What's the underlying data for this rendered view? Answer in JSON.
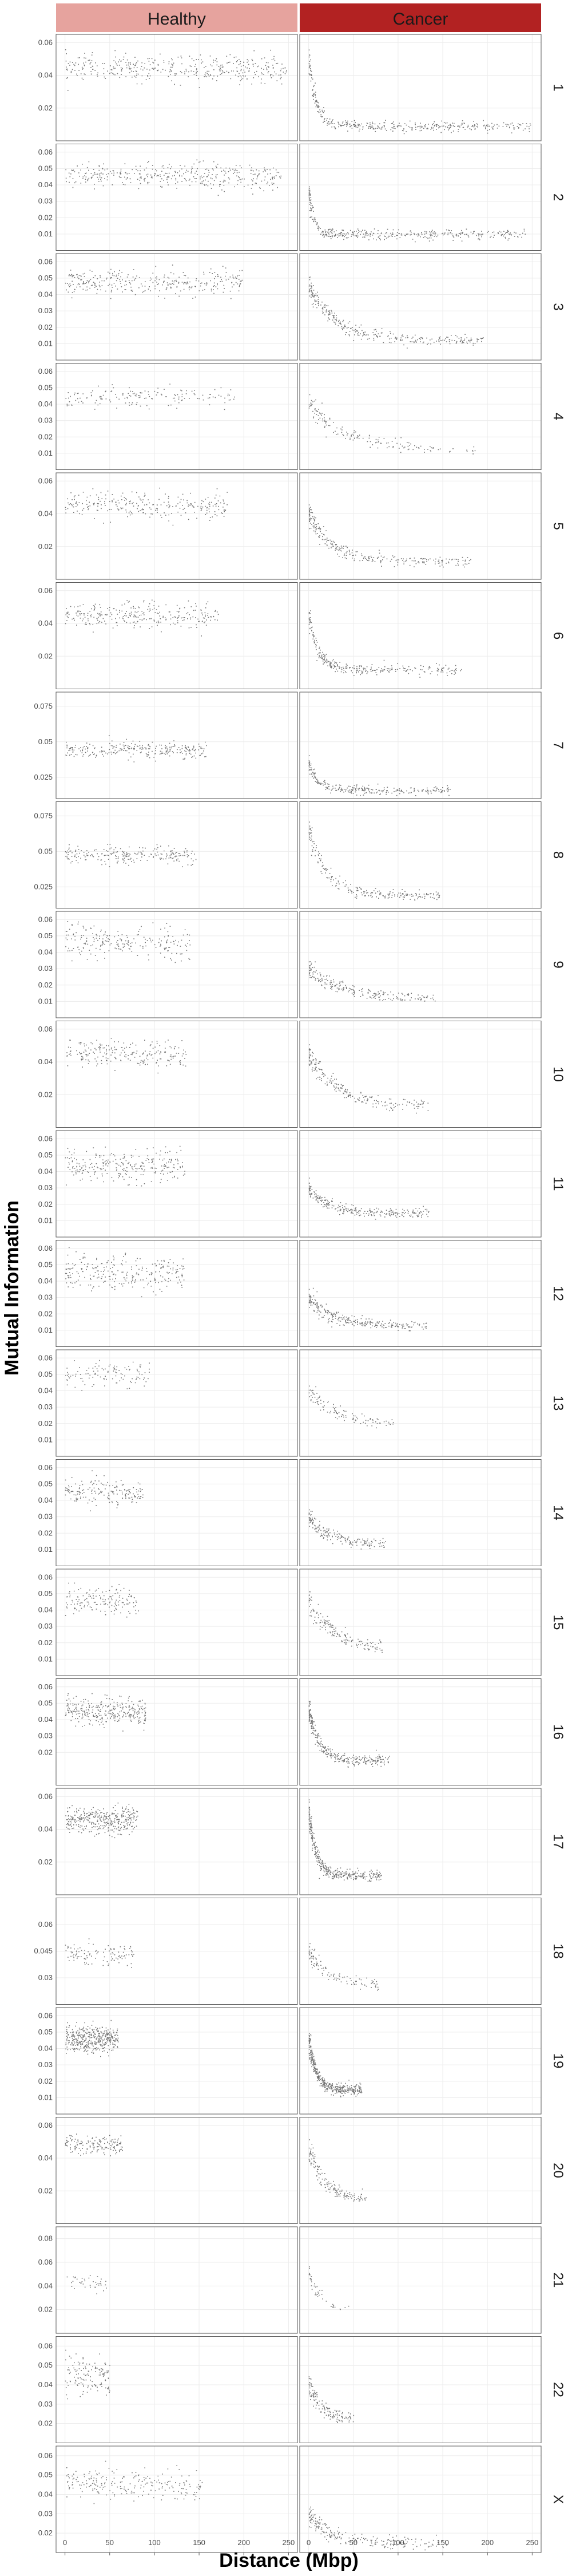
{
  "chart_data": {
    "type": "scatter",
    "xlabel": "Distance (Mbp)",
    "ylabel": "Mutual Information",
    "x_ticks": [
      0,
      50,
      100,
      150,
      200,
      250
    ],
    "xlim": [
      -10,
      260
    ],
    "grid": true,
    "columns": [
      {
        "name": "Healthy",
        "color": "#e6a39e"
      },
      {
        "name": "Cancer",
        "color": "#b22222"
      }
    ],
    "point_color": "#5a5a5a",
    "rows": [
      {
        "label": "1",
        "ylim": [
          0.0,
          0.065
        ],
        "y_ticks": [
          0.02,
          0.04,
          0.06
        ],
        "x_max": 248,
        "density": 900,
        "healthy": {
          "mean": 0.045,
          "spread": 0.004,
          "end": 0.044
        },
        "cancer": {
          "start": 0.05,
          "end": 0.009,
          "decay": 8
        }
      },
      {
        "label": "2",
        "ylim": [
          0.0,
          0.065
        ],
        "y_ticks": [
          0.01,
          0.02,
          0.03,
          0.04,
          0.05,
          0.06
        ],
        "x_max": 242,
        "density": 850,
        "healthy": {
          "mean": 0.046,
          "spread": 0.004,
          "end": 0.045
        },
        "cancer": {
          "start": 0.035,
          "end": 0.01,
          "decay": 6
        }
      },
      {
        "label": "3",
        "ylim": [
          0.0,
          0.065
        ],
        "y_ticks": [
          0.01,
          0.02,
          0.03,
          0.04,
          0.05,
          0.06
        ],
        "x_max": 198,
        "density": 700,
        "healthy": {
          "mean": 0.048,
          "spread": 0.004,
          "end": 0.047
        },
        "cancer": {
          "start": 0.045,
          "end": 0.012,
          "decay": 30
        }
      },
      {
        "label": "4",
        "ylim": [
          0.0,
          0.065
        ],
        "y_ticks": [
          0.01,
          0.02,
          0.03,
          0.04,
          0.05,
          0.06
        ],
        "x_max": 190,
        "density": 350,
        "healthy": {
          "mean": 0.045,
          "spread": 0.003,
          "end": 0.045
        },
        "cancer": {
          "start": 0.04,
          "end": 0.012,
          "decay": 45
        }
      },
      {
        "label": "5",
        "ylim": [
          0.0,
          0.065
        ],
        "y_ticks": [
          0.02,
          0.04,
          0.06
        ],
        "x_max": 181,
        "density": 600,
        "healthy": {
          "mean": 0.046,
          "spread": 0.004,
          "end": 0.045
        },
        "cancer": {
          "start": 0.04,
          "end": 0.011,
          "decay": 25
        }
      },
      {
        "label": "6",
        "ylim": [
          0.0,
          0.065
        ],
        "y_ticks": [
          0.02,
          0.04,
          0.06
        ],
        "x_max": 171,
        "density": 650,
        "healthy": {
          "mean": 0.045,
          "spread": 0.004,
          "end": 0.045
        },
        "cancer": {
          "start": 0.045,
          "end": 0.012,
          "decay": 10
        }
      },
      {
        "label": "7",
        "ylim": [
          0.01,
          0.085
        ],
        "y_ticks": [
          0.025,
          0.05,
          0.075
        ],
        "x_max": 159,
        "density": 600,
        "healthy": {
          "mean": 0.045,
          "spread": 0.003,
          "end": 0.044
        },
        "cancer": {
          "start": 0.035,
          "end": 0.016,
          "decay": 10
        }
      },
      {
        "label": "8",
        "ylim": [
          0.01,
          0.085
        ],
        "y_ticks": [
          0.025,
          0.05,
          0.075
        ],
        "x_max": 146,
        "density": 500,
        "healthy": {
          "mean": 0.048,
          "spread": 0.003,
          "end": 0.047
        },
        "cancer": {
          "start": 0.065,
          "end": 0.019,
          "decay": 20
        }
      },
      {
        "label": "9",
        "ylim": [
          0.0,
          0.065
        ],
        "y_ticks": [
          0.01,
          0.02,
          0.03,
          0.04,
          0.05,
          0.06
        ],
        "x_max": 141,
        "density": 500,
        "healthy": {
          "mean": 0.048,
          "spread": 0.005,
          "end": 0.045
        },
        "cancer": {
          "start": 0.03,
          "end": 0.012,
          "decay": 35
        }
      },
      {
        "label": "10",
        "ylim": [
          0.0,
          0.065
        ],
        "y_ticks": [
          0.02,
          0.04,
          0.06
        ],
        "x_max": 135,
        "density": 500,
        "healthy": {
          "mean": 0.046,
          "spread": 0.004,
          "end": 0.045
        },
        "cancer": {
          "start": 0.045,
          "end": 0.013,
          "decay": 30
        }
      },
      {
        "label": "11",
        "ylim": [
          0.0,
          0.065
        ],
        "y_ticks": [
          0.01,
          0.02,
          0.03,
          0.04,
          0.05,
          0.06
        ],
        "x_max": 135,
        "density": 600,
        "healthy": {
          "mean": 0.045,
          "spread": 0.005,
          "end": 0.043
        },
        "cancer": {
          "start": 0.03,
          "end": 0.015,
          "decay": 20
        }
      },
      {
        "label": "12",
        "ylim": [
          0.0,
          0.065
        ],
        "y_ticks": [
          0.01,
          0.02,
          0.03,
          0.04,
          0.05,
          0.06
        ],
        "x_max": 133,
        "density": 600,
        "healthy": {
          "mean": 0.046,
          "spread": 0.005,
          "end": 0.044
        },
        "cancer": {
          "start": 0.03,
          "end": 0.013,
          "decay": 25
        }
      },
      {
        "label": "13",
        "ylim": [
          0.0,
          0.065
        ],
        "y_ticks": [
          0.01,
          0.02,
          0.03,
          0.04,
          0.05,
          0.06
        ],
        "x_max": 96,
        "density": 250,
        "healthy": {
          "mean": 0.049,
          "spread": 0.004,
          "end": 0.05
        },
        "cancer": {
          "start": 0.04,
          "end": 0.02,
          "decay": 30
        }
      },
      {
        "label": "14",
        "ylim": [
          0.0,
          0.065
        ],
        "y_ticks": [
          0.01,
          0.02,
          0.03,
          0.04,
          0.05,
          0.06
        ],
        "x_max": 87,
        "density": 400,
        "healthy": {
          "mean": 0.046,
          "spread": 0.004,
          "end": 0.045
        },
        "cancer": {
          "start": 0.03,
          "end": 0.014,
          "decay": 20
        }
      },
      {
        "label": "15",
        "ylim": [
          0.0,
          0.065
        ],
        "y_ticks": [
          0.01,
          0.02,
          0.03,
          0.04,
          0.05,
          0.06
        ],
        "x_max": 82,
        "density": 350,
        "healthy": {
          "mean": 0.046,
          "spread": 0.004,
          "end": 0.045
        },
        "cancer": {
          "start": 0.045,
          "end": 0.016,
          "decay": 30
        }
      },
      {
        "label": "16",
        "ylim": [
          0.0,
          0.065
        ],
        "y_ticks": [
          0.02,
          0.03,
          0.04,
          0.05,
          0.06
        ],
        "x_max": 90,
        "density": 700,
        "healthy": {
          "mean": 0.045,
          "spread": 0.004,
          "end": 0.045
        },
        "cancer": {
          "start": 0.045,
          "end": 0.015,
          "decay": 12
        }
      },
      {
        "label": "17",
        "ylim": [
          0.0,
          0.065
        ],
        "y_ticks": [
          0.02,
          0.04,
          0.06
        ],
        "x_max": 81,
        "density": 800,
        "healthy": {
          "mean": 0.046,
          "spread": 0.004,
          "end": 0.046
        },
        "cancer": {
          "start": 0.05,
          "end": 0.012,
          "decay": 8
        }
      },
      {
        "label": "18",
        "ylim": [
          0.015,
          0.075
        ],
        "y_ticks": [
          0.03,
          0.045,
          0.06
        ],
        "x_max": 78,
        "density": 250,
        "healthy": {
          "mean": 0.044,
          "spread": 0.003,
          "end": 0.043
        },
        "cancer": {
          "start": 0.045,
          "end": 0.025,
          "decay": 25
        }
      },
      {
        "label": "19",
        "ylim": [
          0.0,
          0.065
        ],
        "y_ticks": [
          0.01,
          0.02,
          0.03,
          0.04,
          0.05,
          0.06
        ],
        "x_max": 59,
        "density": 900,
        "healthy": {
          "mean": 0.046,
          "spread": 0.004,
          "end": 0.046
        },
        "cancer": {
          "start": 0.045,
          "end": 0.015,
          "decay": 8
        }
      },
      {
        "label": "20",
        "ylim": [
          0.0,
          0.065
        ],
        "y_ticks": [
          0.02,
          0.04,
          0.06
        ],
        "x_max": 64,
        "density": 350,
        "healthy": {
          "mean": 0.049,
          "spread": 0.003,
          "end": 0.048
        },
        "cancer": {
          "start": 0.045,
          "end": 0.015,
          "decay": 18
        }
      },
      {
        "label": "21",
        "ylim": [
          0.0,
          0.09
        ],
        "y_ticks": [
          0.02,
          0.04,
          0.06,
          0.08
        ],
        "x_max": 46,
        "density": 80,
        "healthy": {
          "mean": 0.043,
          "spread": 0.003,
          "end": 0.043
        },
        "cancer": {
          "start": 0.05,
          "end": 0.02,
          "decay": 15
        }
      },
      {
        "label": "22",
        "ylim": [
          0.01,
          0.065
        ],
        "y_ticks": [
          0.02,
          0.03,
          0.04,
          0.05,
          0.06
        ],
        "x_max": 50,
        "density": 300,
        "healthy": {
          "mean": 0.046,
          "spread": 0.005,
          "end": 0.044
        },
        "cancer": {
          "start": 0.04,
          "end": 0.022,
          "decay": 15
        }
      },
      {
        "label": "X",
        "ylim": [
          0.01,
          0.065
        ],
        "y_ticks": [
          0.02,
          0.03,
          0.04,
          0.05,
          0.06
        ],
        "x_max": 155,
        "density": 500,
        "healthy": {
          "mean": 0.048,
          "spread": 0.004,
          "end": 0.043
        },
        "cancer": {
          "start": 0.03,
          "end": 0.015,
          "decay": 25
        }
      }
    ]
  }
}
